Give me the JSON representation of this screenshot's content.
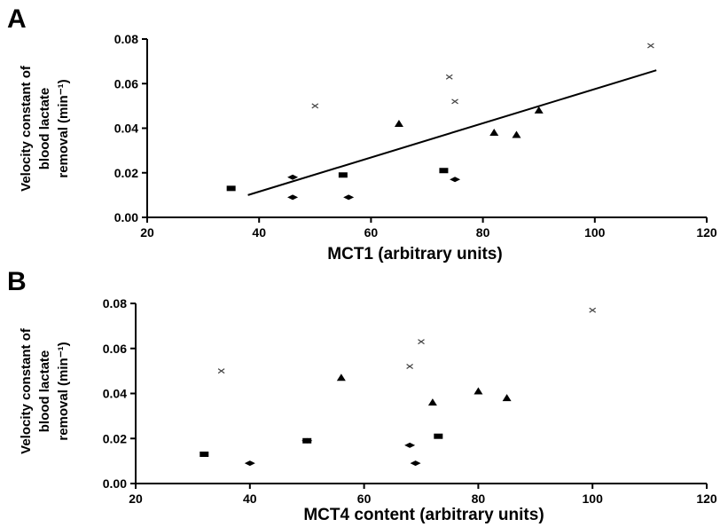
{
  "chart_data": [
    {
      "panel": "A",
      "type": "scatter",
      "xlabel": "MCT1 (arbitrary units)",
      "ylabel_lines": [
        "Velocity constant of",
        "blood lactate",
        "removal (min⁻¹)"
      ],
      "xlim": [
        20,
        120
      ],
      "ylim": [
        0.0,
        0.08
      ],
      "xticks": [
        "20",
        "40",
        "60",
        "80",
        "100",
        "120"
      ],
      "yticks": [
        "0.00",
        "0.02",
        "0.04",
        "0.06",
        "0.08"
      ],
      "series": [
        {
          "marker": "square",
          "points": [
            [
              35,
              0.013
            ],
            [
              55,
              0.019
            ],
            [
              73,
              0.021
            ]
          ]
        },
        {
          "marker": "diamond",
          "points": [
            [
              46,
              0.018
            ],
            [
              46,
              0.009
            ],
            [
              56,
              0.009
            ],
            [
              75,
              0.017
            ]
          ]
        },
        {
          "marker": "triangle",
          "points": [
            [
              65,
              0.042
            ],
            [
              82,
              0.038
            ],
            [
              86,
              0.037
            ],
            [
              90,
              0.048
            ]
          ]
        },
        {
          "marker": "cross",
          "points": [
            [
              50,
              0.05
            ],
            [
              74,
              0.063
            ],
            [
              75,
              0.052
            ],
            [
              110,
              0.077
            ]
          ]
        }
      ],
      "trendline": {
        "x": [
          38,
          111
        ],
        "y": [
          0.01,
          0.066
        ]
      }
    },
    {
      "panel": "B",
      "type": "scatter",
      "xlabel": "MCT4 content (arbitrary units)",
      "ylabel_lines": [
        "Velocity constant of",
        "blood lactate",
        "removal (min⁻¹)"
      ],
      "xlim": [
        20,
        120
      ],
      "ylim": [
        0.0,
        0.08
      ],
      "xticks": [
        "20",
        "40",
        "60",
        "80",
        "100",
        "120"
      ],
      "yticks": [
        "0.00",
        "0.02",
        "0.04",
        "0.06",
        "0.08"
      ],
      "series": [
        {
          "marker": "square",
          "points": [
            [
              32,
              0.013
            ],
            [
              50,
              0.019
            ],
            [
              73,
              0.021
            ]
          ]
        },
        {
          "marker": "diamond",
          "points": [
            [
              40,
              0.009
            ],
            [
              50,
              0.019
            ],
            [
              68,
              0.017
            ],
            [
              69,
              0.009
            ]
          ]
        },
        {
          "marker": "triangle",
          "points": [
            [
              56,
              0.047
            ],
            [
              72,
              0.036
            ],
            [
              80,
              0.041
            ],
            [
              85,
              0.038
            ]
          ]
        },
        {
          "marker": "cross",
          "points": [
            [
              35,
              0.05
            ],
            [
              68,
              0.052
            ],
            [
              70,
              0.063
            ],
            [
              100,
              0.077
            ]
          ]
        }
      ]
    }
  ]
}
